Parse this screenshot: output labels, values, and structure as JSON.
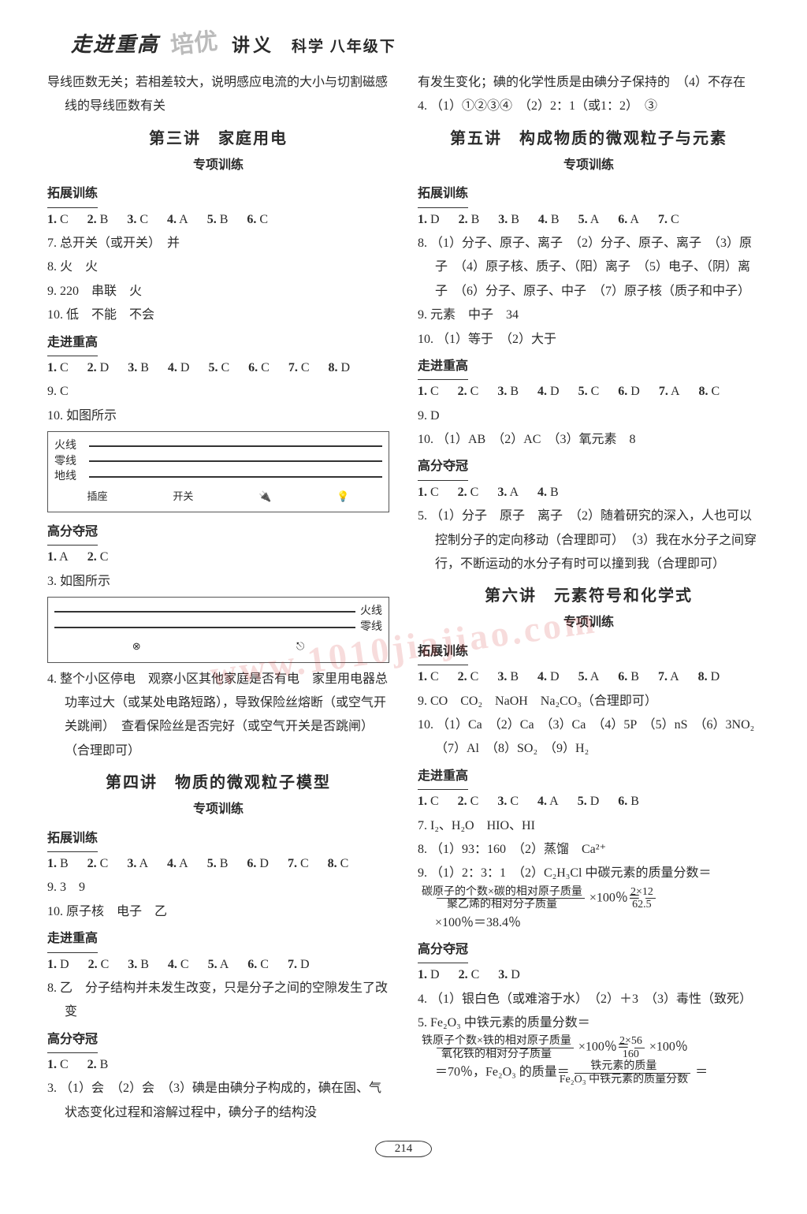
{
  "masthead": {
    "series": "走进重高",
    "stamp": "培优",
    "lecture": "讲义",
    "grade": "科学 八年级下"
  },
  "page_number": "214",
  "watermark": "www.1010jiajiao.com",
  "left": {
    "pre_note": "导线匝数无关；若相差较大，说明感应电流的大小与切割磁感线的导线匝数有关",
    "lesson3": {
      "title": "第三讲　家庭用电",
      "subtitle": "专项训练",
      "sec_tz": "拓展训练",
      "tz_mc": [
        [
          "1.",
          "C"
        ],
        [
          "2.",
          "B"
        ],
        [
          "3.",
          "C"
        ],
        [
          "4.",
          "A"
        ],
        [
          "5.",
          "B"
        ],
        [
          "6.",
          "C"
        ]
      ],
      "tz7": "7. 总开关（或开关）　并",
      "tz8": "8. 火　火",
      "tz9": "9. 220　串联　火",
      "tz10": "10. 低　不能　不会",
      "sec_zg": "走进重高",
      "zg_mc": [
        [
          "1.",
          "C"
        ],
        [
          "2.",
          "D"
        ],
        [
          "3.",
          "B"
        ],
        [
          "4.",
          "D"
        ],
        [
          "5.",
          "C"
        ],
        [
          "6.",
          "C"
        ],
        [
          "7.",
          "C"
        ],
        [
          "8.",
          "D"
        ]
      ],
      "zg9": "9. C",
      "zg10": "10. 如图所示",
      "fig1_labels": [
        "火线",
        "零线",
        "地线"
      ],
      "fig1_devs": [
        "插座",
        "开关",
        "🔌",
        "💡"
      ],
      "sec_gf": "高分夺冠",
      "gf_mc": [
        [
          "1.",
          "A"
        ],
        [
          "2.",
          "C"
        ]
      ],
      "gf3": "3. 如图所示",
      "fig2_labels": [
        "火线",
        "零线"
      ],
      "gf4": "4. 整个小区停电　观察小区其他家庭是否有电　家里用电器总功率过大（或某处电路短路），导致保险丝熔断（或空气开关跳闸）　查看保险丝是否完好（或空气开关是否跳闸）（合理即可）"
    },
    "lesson4": {
      "title": "第四讲　物质的微观粒子模型",
      "subtitle": "专项训练",
      "sec_tz": "拓展训练",
      "tz_mc": [
        [
          "1.",
          "B"
        ],
        [
          "2.",
          "C"
        ],
        [
          "3.",
          "A"
        ],
        [
          "4.",
          "A"
        ],
        [
          "5.",
          "B"
        ],
        [
          "6.",
          "D"
        ],
        [
          "7.",
          "C"
        ],
        [
          "8.",
          "C"
        ]
      ],
      "tz9": "9. 3　9",
      "tz10": "10. 原子核　电子　乙",
      "sec_zg": "走进重高",
      "zg_mc": [
        [
          "1.",
          "D"
        ],
        [
          "2.",
          "C"
        ],
        [
          "3.",
          "B"
        ],
        [
          "4.",
          "C"
        ],
        [
          "5.",
          "A"
        ],
        [
          "6.",
          "C"
        ],
        [
          "7.",
          "D"
        ]
      ],
      "zg8": "8. 乙　分子结构并未发生改变，只是分子之间的空隙发生了改变",
      "sec_gf": "高分夺冠",
      "gf_mc": [
        [
          "1.",
          "C"
        ],
        [
          "2.",
          "B"
        ]
      ],
      "gf3": "3. （1）会　（2）会　（3）碘是由碘分子构成的，碘在固、气状态变化过程和溶解过程中，碘分子的结构没"
    }
  },
  "right": {
    "cont4": "有发生变化；碘的化学性质是由碘分子保持的　（4）不存在",
    "q4": "4. （1）①②③④　（2）2：1（或1：2）　③",
    "lesson5": {
      "title": "第五讲　构成物质的微观粒子与元素",
      "subtitle": "专项训练",
      "sec_tz": "拓展训练",
      "tz_mc": [
        [
          "1.",
          "D"
        ],
        [
          "2.",
          "B"
        ],
        [
          "3.",
          "B"
        ],
        [
          "4.",
          "B"
        ],
        [
          "5.",
          "A"
        ],
        [
          "6.",
          "A"
        ],
        [
          "7.",
          "C"
        ]
      ],
      "tz8": "8. （1）分子、原子、离子　（2）分子、原子、离子　（3）原子　（4）原子核、质子、（阳）离子　（5）电子、（阴）离子　（6）分子、原子、中子　（7）原子核（质子和中子）",
      "tz9": "9. 元素　中子　34",
      "tz10": "10. （1）等于　（2）大于",
      "sec_zg": "走进重高",
      "zg_mc": [
        [
          "1.",
          "C"
        ],
        [
          "2.",
          "C"
        ],
        [
          "3.",
          "B"
        ],
        [
          "4.",
          "D"
        ],
        [
          "5.",
          "C"
        ],
        [
          "6.",
          "D"
        ],
        [
          "7.",
          "A"
        ],
        [
          "8.",
          "C"
        ]
      ],
      "zg9": "9. D",
      "zg10": "10. （1）AB　（2）AC　（3）氧元素　8",
      "sec_gf": "高分夺冠",
      "gf_mc": [
        [
          "1.",
          "C"
        ],
        [
          "2.",
          "C"
        ],
        [
          "3.",
          "A"
        ],
        [
          "4.",
          "B"
        ]
      ],
      "gf5": "5. （1）分子　原子　离子　（2）随着研究的深入，人也可以控制分子的定向移动（合理即可）　（3）我在水分子之间穿行，不断运动的水分子有时可以撞到我（合理即可）"
    },
    "lesson6": {
      "title": "第六讲　元素符号和化学式",
      "subtitle": "专项训练",
      "sec_tz": "拓展训练",
      "tz_mc": [
        [
          "1.",
          "C"
        ],
        [
          "2.",
          "C"
        ],
        [
          "3.",
          "B"
        ],
        [
          "4.",
          "D"
        ],
        [
          "5.",
          "A"
        ],
        [
          "6.",
          "B"
        ],
        [
          "7.",
          "A"
        ],
        [
          "8.",
          "D"
        ]
      ],
      "tz9": "9. CO　CO₂　NaOH　Na₂CO₃（合理即可）",
      "tz10": "10. （1）Ca　（2）Ca　（3）Ca　（4）5P　（5）nS　（6）3NO₂　（7）Al　（8）SO₂　（9）H₂",
      "sec_zg": "走进重高",
      "zg_mc": [
        [
          "1.",
          "C"
        ],
        [
          "2.",
          "C"
        ],
        [
          "3.",
          "C"
        ],
        [
          "4.",
          "A"
        ],
        [
          "5.",
          "D"
        ],
        [
          "6.",
          "B"
        ]
      ],
      "zg7": "7. I₂、H₂O　HIO、HI",
      "zg8": "8. （1）93：160　（2）蒸馏　Ca²⁺",
      "zg9_pre": "9. （1）2：3：1　（2）C₂H₃Cl 中碳元素的质量分数＝",
      "zg9_frac_num": "碳原子的个数×碳的相对原子质量",
      "zg9_frac_den": "聚乙烯的相对分子质量",
      "zg9_mid": "×100％＝",
      "zg9_frac2_num": "2×12",
      "zg9_frac2_den": "62.5",
      "zg9_tail": "×100％＝38.4％",
      "sec_gf": "高分夺冠",
      "gf_mc": [
        [
          "1.",
          "D"
        ],
        [
          "2.",
          "C"
        ],
        [
          "3.",
          "D"
        ]
      ],
      "gf4": "4. （1）银白色（或难溶于水）　（2）＋3　（3）毒性（致死）",
      "gf5_pre": "5. Fe₂O₃ 中铁元素的质量分数＝",
      "gf5_frac_num": "铁原子个数×铁的相对原子质量",
      "gf5_frac_den": "氧化铁的相对分子质量",
      "gf5_mid": "×100％＝",
      "gf5_frac2_num": "2×56",
      "gf5_frac2_den": "160",
      "gf5_mid2": "×100％",
      "gf5_line2_pre": "＝70％，Fe₂O₃ 的质量＝",
      "gf5_frac3_num": "铁元素的质量",
      "gf5_frac3_den": "Fe₂O₃ 中铁元素的质量分数",
      "gf5_tail": "＝"
    }
  }
}
